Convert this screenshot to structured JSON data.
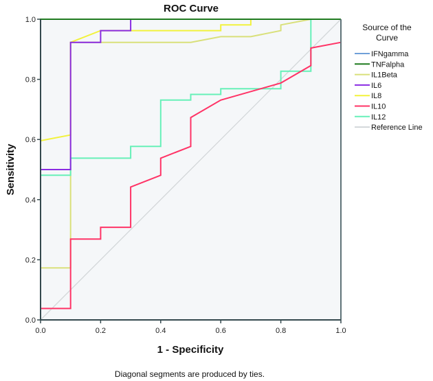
{
  "chart_data": {
    "type": "line",
    "title": "ROC Curve",
    "xlabel": "1 - Specificity",
    "ylabel": "Sensitivity",
    "xlim": [
      0,
      1
    ],
    "ylim": [
      0,
      1
    ],
    "x_ticks": [
      "0.0",
      "0.2",
      "0.4",
      "0.6",
      "0.8",
      "1.0"
    ],
    "y_ticks": [
      "0.0",
      "0.2",
      "0.4",
      "0.6",
      "0.8",
      "1.0"
    ],
    "grid": false,
    "legend": {
      "title_lines": [
        "Source of the",
        "Curve"
      ],
      "placement": "right"
    },
    "footnote": "Diagonal segments are produced by ties.",
    "series": [
      {
        "name": "IFNgamma",
        "color": "#6f9fd8",
        "points": [
          [
            0,
            0
          ],
          [
            0,
            1
          ],
          [
            1,
            1
          ]
        ]
      },
      {
        "name": "TNFalpha",
        "color": "#1f7a1f",
        "points": [
          [
            0,
            0
          ],
          [
            0,
            1
          ],
          [
            1,
            1
          ]
        ]
      },
      {
        "name": "IL1Beta",
        "color": "#d9e07a",
        "points": [
          [
            0,
            0
          ],
          [
            0,
            0.173
          ],
          [
            0.1,
            0.173
          ],
          [
            0.1,
            0.923
          ],
          [
            0.2,
            0.923
          ],
          [
            0.5,
            0.923
          ],
          [
            0.6,
            0.942
          ],
          [
            0.7,
            0.942
          ],
          [
            0.8,
            0.962
          ],
          [
            0.8,
            0.981
          ],
          [
            0.9,
            1
          ],
          [
            1,
            1
          ]
        ]
      },
      {
        "name": "IL6",
        "color": "#8a2be2",
        "points": [
          [
            0,
            0
          ],
          [
            0,
            0.5
          ],
          [
            0.1,
            0.5
          ],
          [
            0.1,
            0.923
          ],
          [
            0.2,
            0.923
          ],
          [
            0.2,
            0.962
          ],
          [
            0.3,
            0.962
          ],
          [
            0.3,
            1
          ],
          [
            1,
            1
          ]
        ]
      },
      {
        "name": "IL8",
        "color": "#f2f23c",
        "points": [
          [
            0,
            0
          ],
          [
            0,
            0.596
          ],
          [
            0.1,
            0.615
          ],
          [
            0.1,
            0.923
          ],
          [
            0.2,
            0.962
          ],
          [
            0.4,
            0.962
          ],
          [
            0.6,
            0.962
          ],
          [
            0.6,
            0.981
          ],
          [
            0.7,
            0.981
          ],
          [
            0.7,
            1
          ],
          [
            1,
            1
          ]
        ]
      },
      {
        "name": "IL10",
        "color": "#ff3366",
        "points": [
          [
            0,
            0
          ],
          [
            0,
            0.038
          ],
          [
            0.1,
            0.038
          ],
          [
            0.1,
            0.269
          ],
          [
            0.2,
            0.269
          ],
          [
            0.2,
            0.308
          ],
          [
            0.3,
            0.308
          ],
          [
            0.3,
            0.442
          ],
          [
            0.4,
            0.481
          ],
          [
            0.4,
            0.538
          ],
          [
            0.5,
            0.577
          ],
          [
            0.5,
            0.673
          ],
          [
            0.6,
            0.731
          ],
          [
            0.8,
            0.788
          ],
          [
            0.9,
            0.846
          ],
          [
            0.9,
            0.904
          ],
          [
            1,
            0.923
          ],
          [
            1,
            1
          ]
        ]
      },
      {
        "name": "IL12",
        "color": "#66f0b8",
        "points": [
          [
            0,
            0
          ],
          [
            0,
            0.481
          ],
          [
            0.1,
            0.481
          ],
          [
            0.1,
            0.538
          ],
          [
            0.3,
            0.538
          ],
          [
            0.3,
            0.577
          ],
          [
            0.4,
            0.577
          ],
          [
            0.4,
            0.731
          ],
          [
            0.5,
            0.731
          ],
          [
            0.5,
            0.75
          ],
          [
            0.6,
            0.75
          ],
          [
            0.6,
            0.769
          ],
          [
            0.8,
            0.769
          ],
          [
            0.8,
            0.827
          ],
          [
            0.9,
            0.827
          ],
          [
            0.9,
            1
          ],
          [
            1,
            1
          ]
        ]
      },
      {
        "name": "Reference Line",
        "color": "#d3d7d9",
        "points": [
          [
            0,
            0
          ],
          [
            1,
            1
          ]
        ]
      }
    ]
  }
}
